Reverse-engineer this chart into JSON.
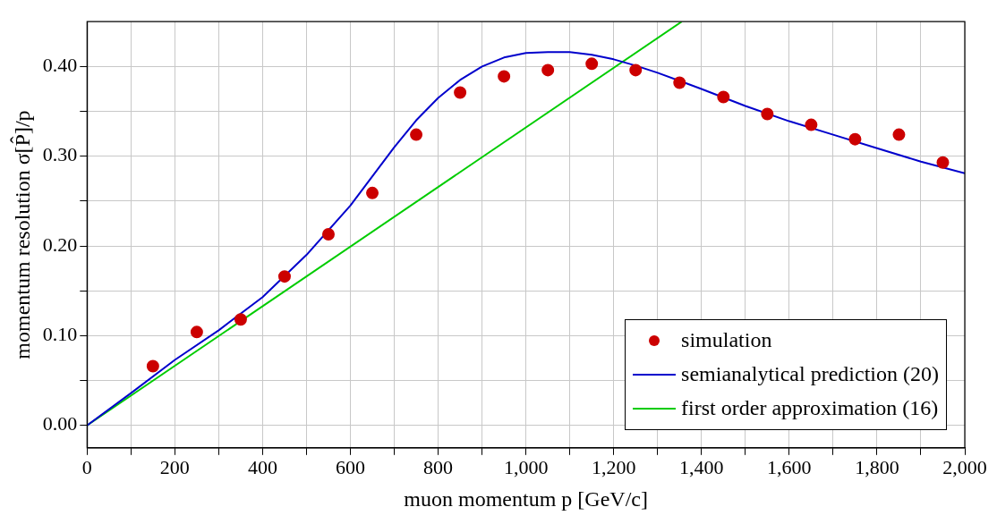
{
  "chart_data": {
    "type": "line",
    "xlabel": "muon momentum p [GeV/c]",
    "ylabel": "momentum resolution σ[P̂]/p",
    "xlim": [
      0,
      2000
    ],
    "ylim": [
      -0.025,
      0.45
    ],
    "xticks": [
      0,
      {
        "value": 100,
        "label": null
      },
      200,
      {
        "value": 300,
        "label": null
      },
      400,
      {
        "value": 500,
        "label": null
      },
      600,
      {
        "value": 700,
        "label": null
      },
      800,
      {
        "value": 900,
        "label": null
      },
      {
        "value": 1000,
        "label": "1,000"
      },
      {
        "value": 1100,
        "label": null
      },
      {
        "value": 1200,
        "label": "1,200"
      },
      {
        "value": 1300,
        "label": null
      },
      {
        "value": 1400,
        "label": "1,400"
      },
      {
        "value": 1500,
        "label": null
      },
      {
        "value": 1600,
        "label": "1,600"
      },
      {
        "value": 1700,
        "label": null
      },
      {
        "value": 1800,
        "label": "1,800"
      },
      {
        "value": 1900,
        "label": null
      },
      {
        "value": 2000,
        "label": "2,000"
      }
    ],
    "yticks": [
      {
        "value": 0,
        "label": "0.00"
      },
      {
        "value": 0.05,
        "label": null
      },
      {
        "value": 0.1,
        "label": "0.10"
      },
      {
        "value": 0.15,
        "label": null
      },
      {
        "value": 0.2,
        "label": "0.20"
      },
      {
        "value": 0.25,
        "label": null
      },
      {
        "value": 0.3,
        "label": "0.30"
      },
      {
        "value": 0.35,
        "label": null
      },
      {
        "value": 0.4,
        "label": "0.40"
      }
    ],
    "grid": true,
    "legend": "bottom right",
    "series": [
      {
        "name": "simulation",
        "type": "scatter",
        "marker": "circle",
        "color": "#cc0000",
        "x": [
          150,
          250,
          350,
          450,
          550,
          650,
          750,
          850,
          950,
          1050,
          1150,
          1250,
          1350,
          1450,
          1550,
          1650,
          1750,
          1850,
          1950
        ],
        "values": [
          0.066,
          0.104,
          0.118,
          0.166,
          0.213,
          0.259,
          0.324,
          0.371,
          0.389,
          0.396,
          0.403,
          0.396,
          0.382,
          0.366,
          0.347,
          0.335,
          0.319,
          0.324,
          0.293
        ]
      },
      {
        "name": "semianalytical prediction (20)",
        "type": "line",
        "color": "#0000cc",
        "x": [
          0,
          100,
          200,
          300,
          400,
          500,
          600,
          700,
          750,
          800,
          850,
          900,
          950,
          1000,
          1050,
          1100,
          1150,
          1200,
          1250,
          1300,
          1400,
          1500,
          1600,
          1700,
          1800,
          1900,
          2000
        ],
        "values": [
          0,
          0.036,
          0.073,
          0.106,
          0.143,
          0.19,
          0.245,
          0.31,
          0.34,
          0.365,
          0.385,
          0.4,
          0.41,
          0.415,
          0.416,
          0.416,
          0.413,
          0.408,
          0.401,
          0.393,
          0.375,
          0.356,
          0.339,
          0.324,
          0.309,
          0.294,
          0.281
        ]
      },
      {
        "name": "first order approximation (16)",
        "type": "line",
        "color": "#00cc00",
        "x": [
          0,
          1355
        ],
        "values": [
          0,
          0.45
        ]
      }
    ]
  }
}
